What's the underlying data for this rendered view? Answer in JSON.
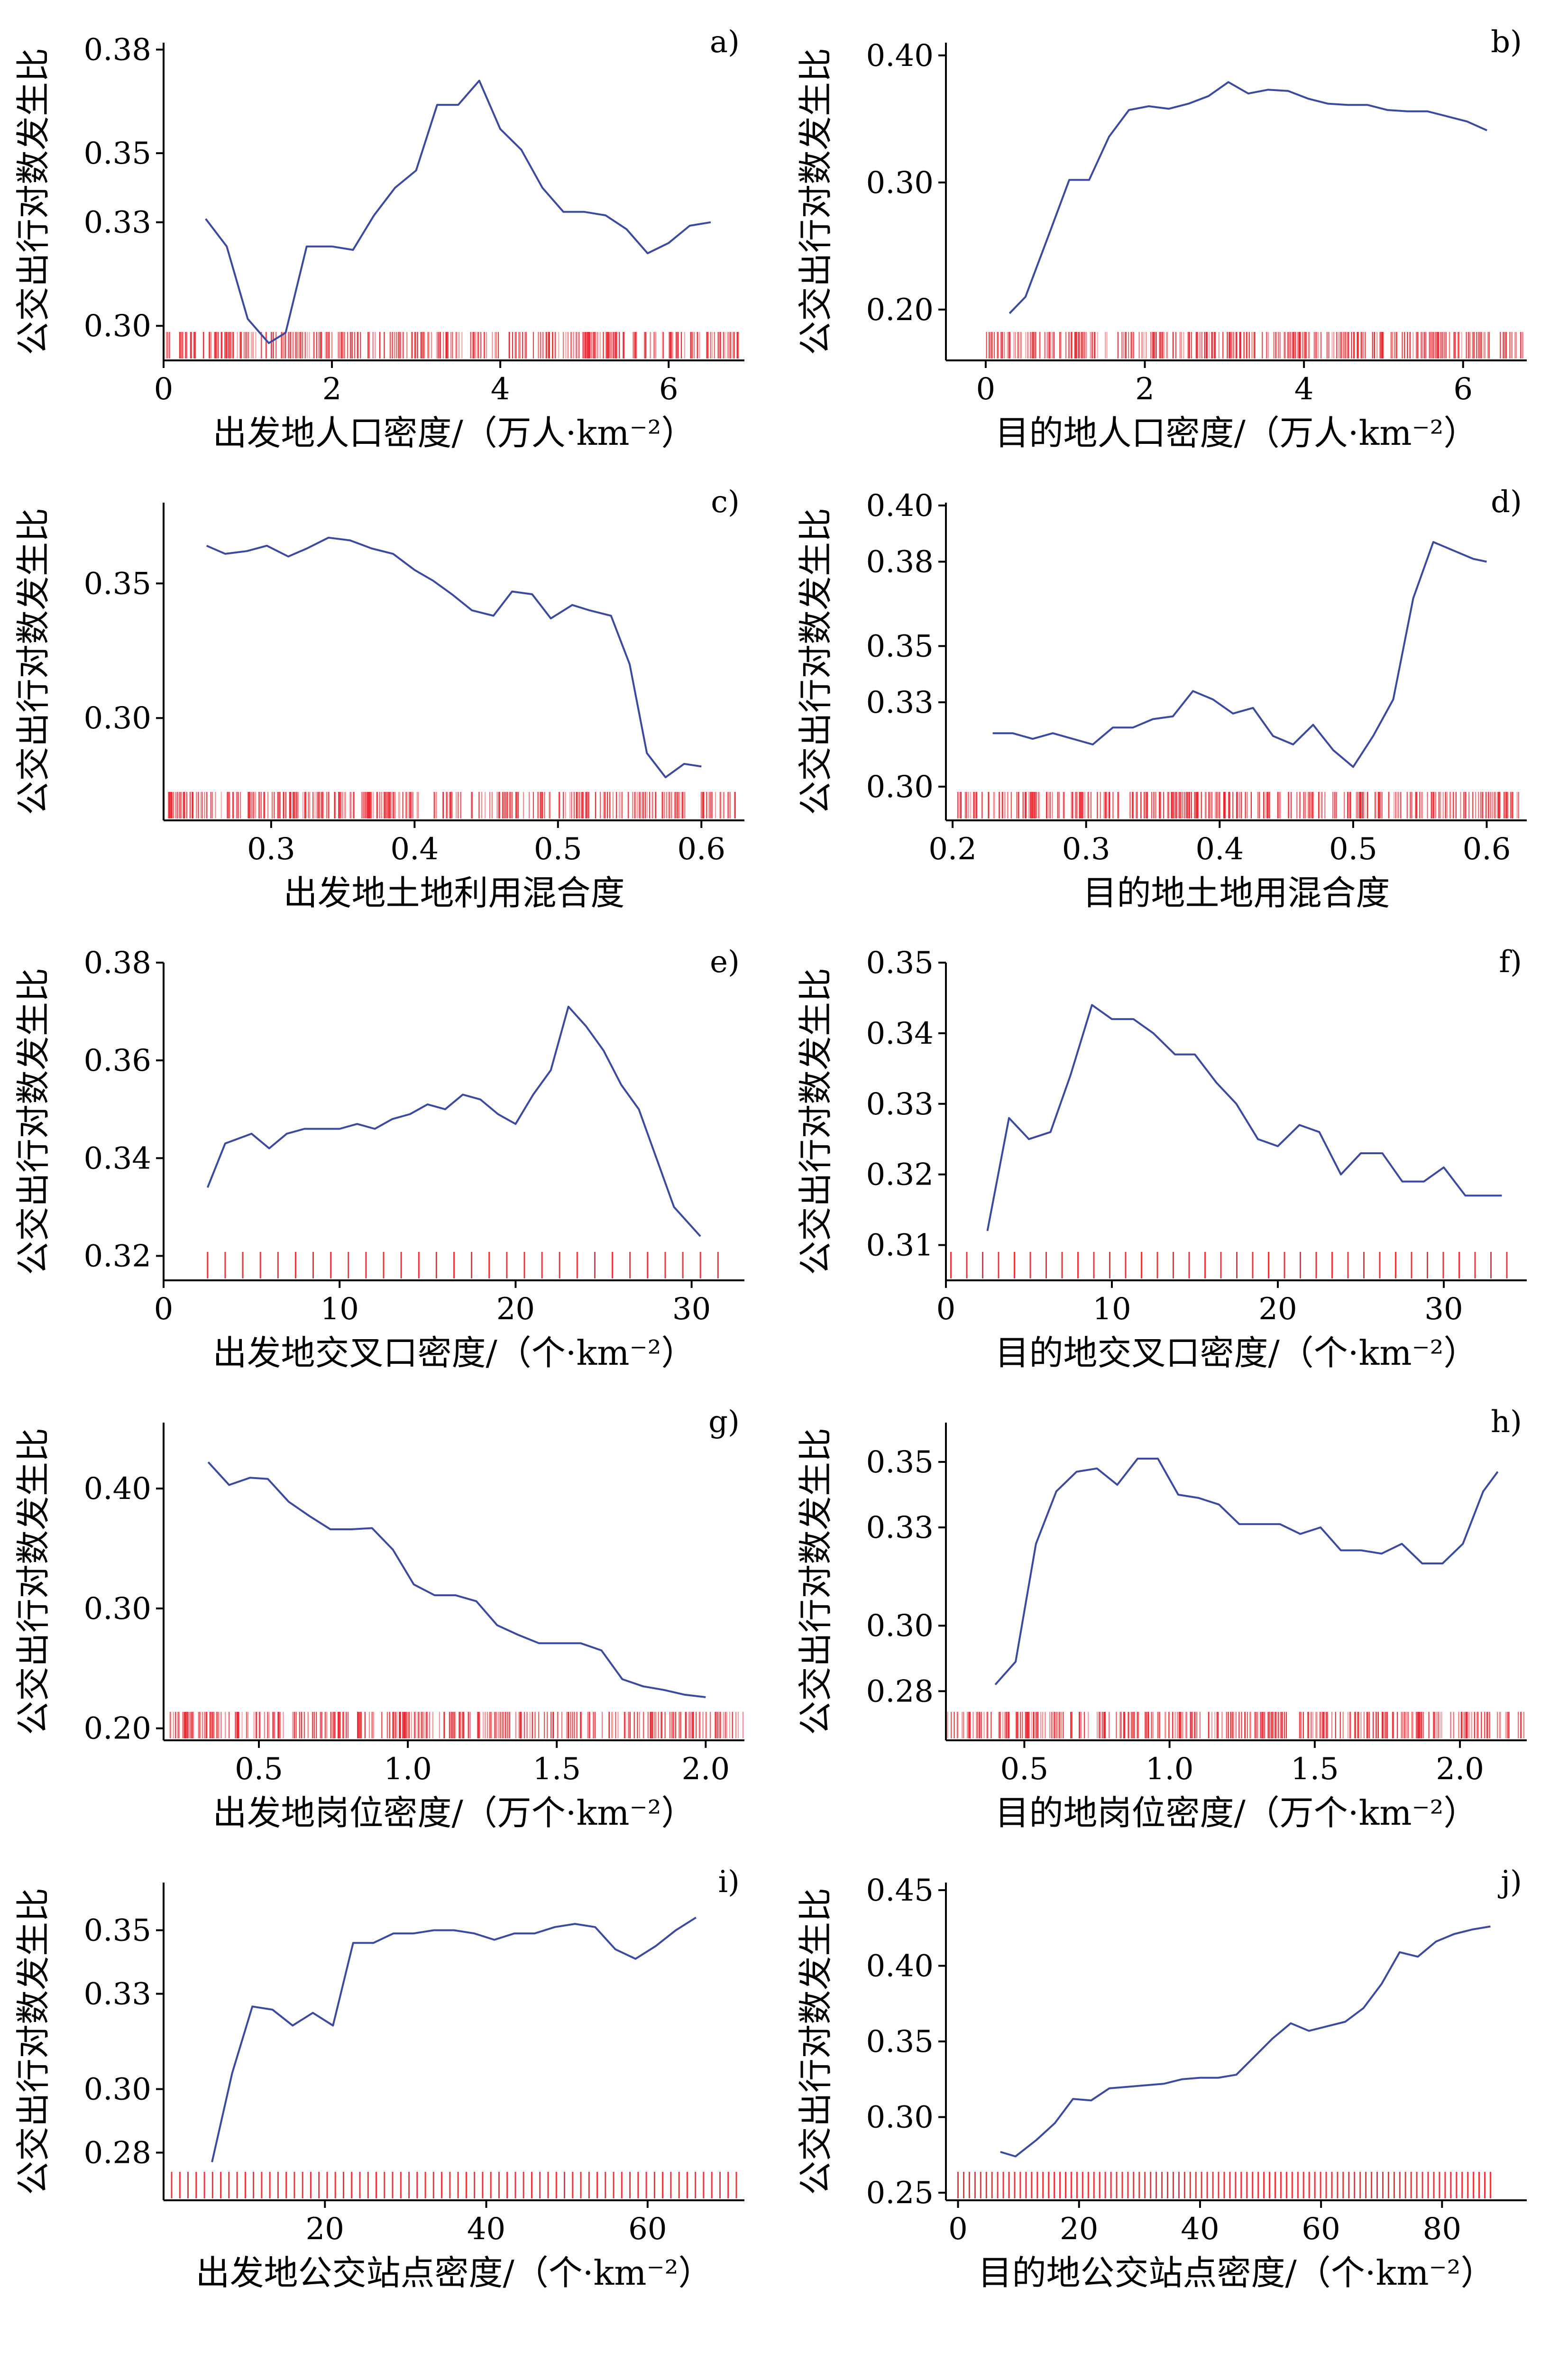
{
  "figure": {
    "line_color": "#3b4aa0",
    "rug_color": "#e8202a",
    "axis_color": "#000000"
  },
  "chart_data": [
    {
      "type": "line",
      "tag": "a)",
      "xlabel": "出发地人口密度/（万人·km⁻²）",
      "ylabel": "公交出行对数发生比",
      "xlim": [
        0,
        6.9
      ],
      "ylim": [
        0.29,
        0.382
      ],
      "xticks": [
        0,
        2,
        4,
        6
      ],
      "xtick_labels": [
        "0",
        "2",
        "4",
        "6"
      ],
      "yticks": [
        0.3,
        0.33,
        0.35,
        0.38
      ],
      "ytick_labels": [
        "0.30",
        "0.33",
        "0.35",
        "0.38"
      ],
      "rug": {
        "range": [
          0.0,
          6.85
        ],
        "count": 330
      },
      "x": [
        0.5,
        0.75,
        1.0,
        1.25,
        1.45,
        1.7,
        2.0,
        2.25,
        2.5,
        2.75,
        3.0,
        3.25,
        3.5,
        3.75,
        4.0,
        4.25,
        4.5,
        4.75,
        5.0,
        5.25,
        5.5,
        5.75,
        6.0,
        6.25,
        6.5
      ],
      "y": [
        0.331,
        0.323,
        0.302,
        0.295,
        0.298,
        0.323,
        0.323,
        0.322,
        0.332,
        0.34,
        0.345,
        0.364,
        0.364,
        0.371,
        0.357,
        0.351,
        0.34,
        0.333,
        0.333,
        0.332,
        0.328,
        0.321,
        0.324,
        0.329,
        0.33
      ]
    },
    {
      "type": "line",
      "tag": "b)",
      "xlabel": "目的地人口密度/（万人·km⁻²）",
      "ylabel": "公交出行对数发生比",
      "xlim": [
        -0.5,
        6.8
      ],
      "ylim": [
        0.16,
        0.41
      ],
      "xticks": [
        0,
        2,
        4,
        6
      ],
      "xtick_labels": [
        "0",
        "2",
        "4",
        "6"
      ],
      "yticks": [
        0.2,
        0.3,
        0.4
      ],
      "ytick_labels": [
        "0.20",
        "0.30",
        "0.40"
      ],
      "rug": {
        "range": [
          0.0,
          6.75
        ],
        "count": 330
      },
      "x": [
        0.3,
        0.5,
        0.8,
        1.05,
        1.3,
        1.55,
        1.8,
        2.05,
        2.3,
        2.55,
        2.8,
        3.05,
        3.3,
        3.55,
        3.8,
        4.05,
        4.3,
        4.55,
        4.8,
        5.05,
        5.3,
        5.55,
        5.8,
        6.05,
        6.3
      ],
      "y": [
        0.197,
        0.21,
        0.26,
        0.302,
        0.302,
        0.336,
        0.357,
        0.36,
        0.358,
        0.362,
        0.368,
        0.379,
        0.37,
        0.373,
        0.372,
        0.366,
        0.362,
        0.361,
        0.361,
        0.357,
        0.356,
        0.356,
        0.352,
        0.348,
        0.341
      ]
    },
    {
      "type": "line",
      "tag": "c)",
      "xlabel": "出发地土地利用混合度",
      "ylabel": "公交出行对数发生比",
      "xlim": [
        0.225,
        0.63
      ],
      "ylim": [
        0.262,
        0.38
      ],
      "xticks": [
        0.3,
        0.4,
        0.5,
        0.6
      ],
      "xtick_labels": [
        "0.3",
        "0.4",
        "0.5",
        "0.6"
      ],
      "yticks": [
        0.3,
        0.35
      ],
      "ytick_labels": [
        "0.30",
        "0.35"
      ],
      "rug": {
        "range": [
          0.228,
          0.628
        ],
        "count": 330
      },
      "x": [
        0.255,
        0.268,
        0.283,
        0.297,
        0.312,
        0.325,
        0.34,
        0.355,
        0.37,
        0.385,
        0.4,
        0.413,
        0.426,
        0.44,
        0.455,
        0.468,
        0.482,
        0.495,
        0.51,
        0.522,
        0.537,
        0.55,
        0.562,
        0.575,
        0.588,
        0.6
      ],
      "y": [
        0.364,
        0.361,
        0.362,
        0.364,
        0.36,
        0.363,
        0.367,
        0.366,
        0.363,
        0.361,
        0.355,
        0.351,
        0.346,
        0.34,
        0.338,
        0.347,
        0.346,
        0.337,
        0.342,
        0.34,
        0.338,
        0.32,
        0.287,
        0.278,
        0.283,
        0.282
      ]
    },
    {
      "type": "line",
      "tag": "d)",
      "xlabel": "目的地土地用混合度",
      "ylabel": "公交出行对数发生比",
      "xlim": [
        0.195,
        0.63
      ],
      "ylim": [
        0.288,
        0.401
      ],
      "xticks": [
        0.2,
        0.3,
        0.4,
        0.5,
        0.6
      ],
      "xtick_labels": [
        "0.2",
        "0.3",
        "0.4",
        "0.5",
        "0.6"
      ],
      "yticks": [
        0.3,
        0.33,
        0.35,
        0.38,
        0.4
      ],
      "ytick_labels": [
        "0.30",
        "0.33",
        "0.35",
        "0.38",
        "0.40"
      ],
      "rug": {
        "range": [
          0.2,
          0.625
        ],
        "count": 330
      },
      "x": [
        0.23,
        0.245,
        0.26,
        0.275,
        0.29,
        0.305,
        0.32,
        0.335,
        0.35,
        0.365,
        0.38,
        0.395,
        0.41,
        0.425,
        0.44,
        0.455,
        0.47,
        0.485,
        0.5,
        0.515,
        0.53,
        0.545,
        0.56,
        0.575,
        0.59,
        0.6
      ],
      "y": [
        0.319,
        0.319,
        0.317,
        0.319,
        0.317,
        0.315,
        0.321,
        0.321,
        0.324,
        0.325,
        0.334,
        0.331,
        0.326,
        0.328,
        0.318,
        0.315,
        0.322,
        0.313,
        0.307,
        0.318,
        0.331,
        0.367,
        0.387,
        0.384,
        0.381,
        0.38
      ]
    },
    {
      "type": "line",
      "tag": "e)",
      "xlabel": "出发地交叉口密度/（个·km⁻²）",
      "ylabel": "公交出行对数发生比",
      "xlim": [
        0,
        33
      ],
      "ylim": [
        0.315,
        0.38
      ],
      "xticks": [
        0,
        10,
        20,
        30
      ],
      "xtick_labels": [
        "0",
        "10",
        "20",
        "30"
      ],
      "yticks": [
        0.32,
        0.34,
        0.36,
        0.38
      ],
      "ytick_labels": [
        "0.32",
        "0.34",
        "0.36",
        "0.38"
      ],
      "rug": {
        "range": [
          2.5,
          31.5
        ],
        "count": 30
      },
      "x": [
        2.5,
        3.5,
        5,
        6,
        7,
        8,
        9,
        10,
        11,
        12,
        13,
        14,
        15,
        16,
        17,
        18,
        19,
        20,
        21,
        22,
        23,
        24,
        25,
        26,
        27,
        28,
        29,
        30.5
      ],
      "y": [
        0.334,
        0.343,
        0.345,
        0.342,
        0.345,
        0.346,
        0.346,
        0.346,
        0.347,
        0.346,
        0.348,
        0.349,
        0.351,
        0.35,
        0.353,
        0.352,
        0.349,
        0.347,
        0.353,
        0.358,
        0.371,
        0.367,
        0.362,
        0.355,
        0.35,
        0.34,
        0.33,
        0.324
      ]
    },
    {
      "type": "line",
      "tag": "f)",
      "xlabel": "目的地交叉口密度/（个·km⁻²）",
      "ylabel": "公交出行对数发生比",
      "xlim": [
        0,
        35
      ],
      "ylim": [
        0.305,
        0.35
      ],
      "xticks": [
        0,
        10,
        20,
        30
      ],
      "xtick_labels": [
        "0",
        "10",
        "20",
        "30"
      ],
      "yticks": [
        0.31,
        0.32,
        0.33,
        0.34,
        0.35
      ],
      "ytick_labels": [
        "0.31",
        "0.32",
        "0.33",
        "0.34",
        "0.35"
      ],
      "rug": {
        "range": [
          0.3,
          33.8
        ],
        "count": 36
      },
      "x": [
        2.5,
        3.8,
        5,
        6.3,
        7.5,
        8.8,
        10,
        11.3,
        12.5,
        13.8,
        15,
        16.3,
        17.5,
        18.8,
        20,
        21.3,
        22.5,
        23.8,
        25,
        26.3,
        27.5,
        28.8,
        30,
        31.3,
        32.5,
        33.5
      ],
      "y": [
        0.312,
        0.328,
        0.325,
        0.326,
        0.334,
        0.344,
        0.342,
        0.342,
        0.34,
        0.337,
        0.337,
        0.333,
        0.33,
        0.325,
        0.324,
        0.327,
        0.326,
        0.32,
        0.323,
        0.323,
        0.319,
        0.319,
        0.321,
        0.317,
        0.317,
        0.317
      ]
    },
    {
      "type": "line",
      "tag": "g)",
      "xlabel": "出发地岗位密度/（万个·km⁻²）",
      "ylabel": "公交出行对数发生比",
      "xlim": [
        0.18,
        2.13
      ],
      "ylim": [
        0.19,
        0.455
      ],
      "xticks": [
        0.5,
        1.0,
        1.5,
        2.0
      ],
      "xtick_labels": [
        "0.5",
        "1.0",
        "1.5",
        "2.0"
      ],
      "yticks": [
        0.2,
        0.3,
        0.4
      ],
      "ytick_labels": [
        "0.20",
        "0.30",
        "0.40"
      ],
      "rug": {
        "range": [
          0.2,
          2.13
        ],
        "count": 330
      },
      "x": [
        0.33,
        0.4,
        0.47,
        0.53,
        0.6,
        0.67,
        0.74,
        0.81,
        0.88,
        0.95,
        1.02,
        1.09,
        1.16,
        1.23,
        1.3,
        1.37,
        1.44,
        1.51,
        1.58,
        1.65,
        1.72,
        1.79,
        1.86,
        1.93,
        2.0
      ],
      "y": [
        0.422,
        0.403,
        0.409,
        0.408,
        0.389,
        0.377,
        0.366,
        0.366,
        0.367,
        0.349,
        0.32,
        0.311,
        0.311,
        0.306,
        0.286,
        0.278,
        0.271,
        0.271,
        0.271,
        0.265,
        0.241,
        0.235,
        0.232,
        0.228,
        0.226
      ]
    },
    {
      "type": "line",
      "tag": "h)",
      "xlabel": "目的地岗位密度/（万个·km⁻²）",
      "ylabel": "公交出行对数发生比",
      "xlim": [
        0.23,
        2.23
      ],
      "ylim": [
        0.265,
        0.362
      ],
      "xticks": [
        0.5,
        1.0,
        1.5,
        2.0
      ],
      "xtick_labels": [
        "0.5",
        "1.0",
        "1.5",
        "2.0"
      ],
      "yticks": [
        0.28,
        0.3,
        0.33,
        0.35
      ],
      "ytick_labels": [
        "0.28",
        "0.30",
        "0.33",
        "0.35"
      ],
      "rug": {
        "range": [
          0.23,
          2.23
        ],
        "count": 330
      },
      "x": [
        0.4,
        0.47,
        0.54,
        0.61,
        0.68,
        0.75,
        0.82,
        0.89,
        0.96,
        1.03,
        1.1,
        1.17,
        1.24,
        1.31,
        1.38,
        1.45,
        1.52,
        1.59,
        1.66,
        1.73,
        1.8,
        1.87,
        1.94,
        2.01,
        2.08,
        2.13
      ],
      "y": [
        0.282,
        0.289,
        0.325,
        0.341,
        0.347,
        0.348,
        0.343,
        0.351,
        0.351,
        0.34,
        0.339,
        0.337,
        0.331,
        0.331,
        0.331,
        0.328,
        0.33,
        0.323,
        0.323,
        0.322,
        0.325,
        0.319,
        0.319,
        0.325,
        0.341,
        0.347
      ]
    },
    {
      "type": "line",
      "tag": "i)",
      "xlabel": "出发地公交站点密度/（个·km⁻²）",
      "ylabel": "公交出行对数发生比",
      "xlim": [
        0,
        72
      ],
      "ylim": [
        0.265,
        0.365
      ],
      "xticks": [
        20,
        40,
        60
      ],
      "xtick_labels": [
        "20",
        "40",
        "60"
      ],
      "yticks": [
        0.28,
        0.3,
        0.33,
        0.35
      ],
      "ytick_labels": [
        "0.28",
        "0.30",
        "0.33",
        "0.35"
      ],
      "rug": {
        "range": [
          1,
          71
        ],
        "count": 70
      },
      "x": [
        6,
        8.5,
        11,
        13.5,
        16,
        18.5,
        21,
        23.5,
        26,
        28.5,
        31,
        33.5,
        36,
        38.5,
        41,
        43.5,
        46,
        48.5,
        51,
        53.5,
        56,
        58.5,
        61,
        63.5,
        66
      ],
      "y": [
        0.277,
        0.305,
        0.326,
        0.325,
        0.32,
        0.324,
        0.32,
        0.346,
        0.346,
        0.349,
        0.349,
        0.35,
        0.35,
        0.349,
        0.347,
        0.349,
        0.349,
        0.351,
        0.352,
        0.351,
        0.344,
        0.341,
        0.345,
        0.35,
        0.354
      ]
    },
    {
      "type": "line",
      "tag": "j)",
      "xlabel": "目的地公交站点密度/（个·km⁻²）",
      "ylabel": "公交出行对数发生比",
      "xlim": [
        -2,
        94
      ],
      "ylim": [
        0.245,
        0.455
      ],
      "xticks": [
        0,
        20,
        40,
        60,
        80
      ],
      "xtick_labels": [
        "0",
        "20",
        "40",
        "60",
        "80"
      ],
      "yticks": [
        0.25,
        0.3,
        0.35,
        0.4,
        0.45
      ],
      "ytick_labels": [
        "0.25",
        "0.30",
        "0.35",
        "0.40",
        "0.45"
      ],
      "rug": {
        "range": [
          0,
          88
        ],
        "count": 95
      },
      "x": [
        7,
        9.5,
        13,
        16,
        19,
        22,
        25,
        28,
        31,
        34,
        37,
        40,
        43,
        46,
        49,
        52,
        55,
        58,
        61,
        64,
        67,
        70,
        73,
        76,
        79,
        82,
        85,
        88
      ],
      "y": [
        0.277,
        0.274,
        0.285,
        0.296,
        0.312,
        0.311,
        0.319,
        0.32,
        0.321,
        0.322,
        0.325,
        0.326,
        0.326,
        0.328,
        0.34,
        0.352,
        0.362,
        0.357,
        0.36,
        0.363,
        0.372,
        0.388,
        0.409,
        0.406,
        0.416,
        0.421,
        0.424,
        0.426
      ]
    }
  ]
}
